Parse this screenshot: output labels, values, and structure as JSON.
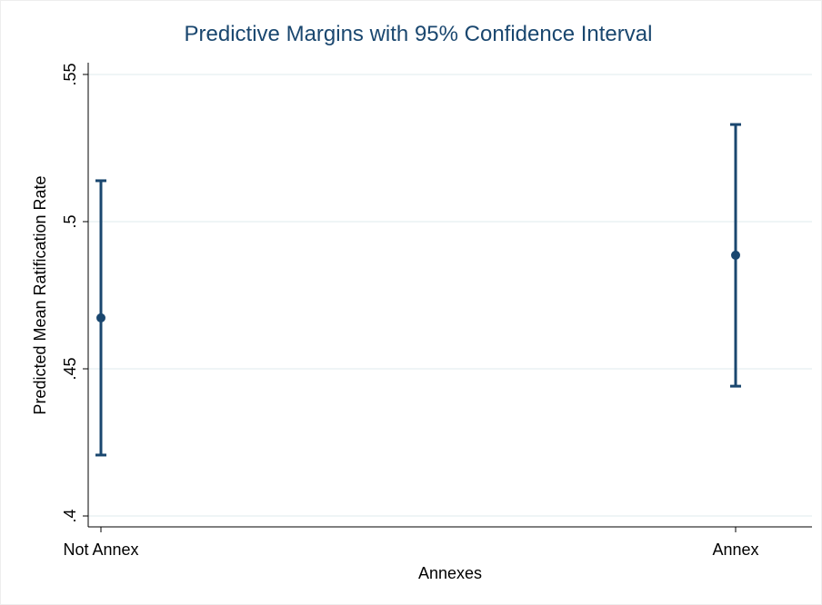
{
  "chart_data": {
    "type": "errorbar",
    "title": "Predictive Margins with 95% Confidence Interval",
    "y_label": "Predicted Mean Ratification Rate",
    "x_label": "Annexes",
    "categories": [
      "Not Annex",
      "Annex"
    ],
    "values": [
      0.4673,
      0.4886
    ],
    "ci_lower": [
      0.4207,
      0.4441
    ],
    "ci_upper": [
      0.5139,
      0.533
    ],
    "color": "#1a476f",
    "ylim": [
      0.3963,
      0.554
    ],
    "yticks": [
      {
        "value": 0.4,
        "label": ".4"
      },
      {
        "value": 0.45,
        "label": ".45"
      },
      {
        "value": 0.5,
        "label": ".5"
      },
      {
        "value": 0.55,
        "label": ".55"
      }
    ],
    "grid": true
  }
}
